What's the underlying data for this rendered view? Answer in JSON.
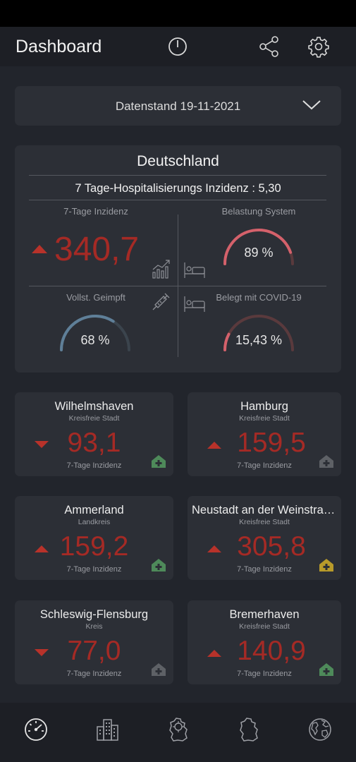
{
  "app": {
    "title": "Dashboard"
  },
  "appbar": {
    "icons": [
      "power-icon",
      "share-icon",
      "gear-icon"
    ]
  },
  "date_select": {
    "label": "Datenstand 19-11-2021"
  },
  "germany": {
    "title": "Deutschland",
    "hospitalization": "7 Tage-Hospitalisierungs Inzidenz : 5,30",
    "incidence_label": "7-Tage Inzidenz",
    "incidence_value": "340,7",
    "incidence_trend": "up",
    "system_load_label": "Belastung System",
    "system_load_value": "89 %",
    "system_load_percent": 89,
    "vaccinated_label": "Vollst. Geimpft",
    "vaccinated_value": "68 %",
    "vaccinated_percent": 68,
    "covid_beds_label": "Belegt mit COVID-19",
    "covid_beds_value": "15,43 %",
    "covid_beds_percent": 15.43,
    "colors": {
      "incidence": "#a52a25",
      "load": "#d4616b",
      "vaccinated": "#5f7f98",
      "beds": "#d4616b"
    }
  },
  "cities": [
    {
      "name": "Wilhelmshaven",
      "type": "Kreisfreie Stadt",
      "value": "93,1",
      "trend": "down",
      "sub": "7-Tage Inzidenz",
      "hospital_color": "#4e8a5a"
    },
    {
      "name": "Hamburg",
      "type": "Kreisfreie Stadt",
      "value": "159,5",
      "trend": "up",
      "sub": "7-Tage Inzidenz",
      "hospital_color": "#5e6166"
    },
    {
      "name": "Ammerland",
      "type": "Landkreis",
      "value": "159,2",
      "trend": "up",
      "sub": "7-Tage Inzidenz",
      "hospital_color": "#4e8a5a"
    },
    {
      "name": "Neustadt an der Weinstraße",
      "type": "Kreisfreie Stadt",
      "value": "305,8",
      "trend": "up",
      "sub": "7-Tage Inzidenz",
      "hospital_color": "#b89a2a"
    },
    {
      "name": "Schleswig-Flensburg",
      "type": "Kreis",
      "value": "77,0",
      "trend": "down",
      "sub": "7-Tage Inzidenz",
      "hospital_color": "#5e6166"
    },
    {
      "name": "Bremerhaven",
      "type": "Kreisfreie Stadt",
      "value": "140,9",
      "trend": "up",
      "sub": "7-Tage Inzidenz",
      "hospital_color": "#4e8a5a"
    }
  ],
  "bottom_nav": {
    "items": [
      "speedometer-icon",
      "city-buildings-icon",
      "germany-virus-icon",
      "germany-map-icon",
      "globe-icon"
    ]
  }
}
